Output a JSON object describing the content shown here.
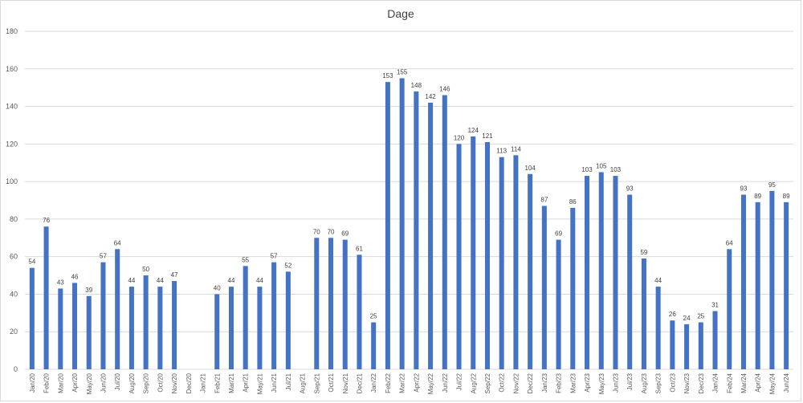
{
  "chart_data": {
    "type": "bar",
    "title": "Dage",
    "xlabel": "",
    "ylabel": "",
    "ylim": [
      0,
      180
    ],
    "yticks": [
      0,
      20,
      40,
      60,
      80,
      100,
      120,
      140,
      160,
      180
    ],
    "grid": true,
    "legend": "none",
    "bar_color": "#4472c4",
    "categories": [
      "Jan/20",
      "Feb/20",
      "Mar/20",
      "Apr/20",
      "May/20",
      "Jun/20",
      "Jul/20",
      "Aug/20",
      "Sep/20",
      "Oct/20",
      "Nov/20",
      "Dec/20",
      "Jan/21",
      "Feb/21",
      "Mar/21",
      "Apr/21",
      "May/21",
      "Jun/21",
      "Jul/21",
      "Aug/21",
      "Sep/21",
      "Oct/21",
      "Nov/21",
      "Dec/21",
      "Jan/22",
      "Feb/22",
      "Mar/22",
      "Apr/22",
      "May/22",
      "Jun/22",
      "Jul/22",
      "Aug/22",
      "Sep/22",
      "Oct/22",
      "Nov/22",
      "Dec/22",
      "Jan/23",
      "Feb/23",
      "Mar/23",
      "Apr/23",
      "May/23",
      "Jun/23",
      "Jul/23",
      "Aug/23",
      "Sep/23",
      "Oct/23",
      "Nov/23",
      "Dec/23",
      "Jan/24",
      "Feb/24",
      "Mar/24",
      "Apr/24",
      "May/24",
      "Jun/24"
    ],
    "values": [
      54,
      76,
      43,
      46,
      39,
      57,
      64,
      44,
      50,
      44,
      47,
      null,
      null,
      40,
      44,
      55,
      44,
      57,
      52,
      null,
      70,
      70,
      69,
      61,
      25,
      153,
      155,
      148,
      142,
      146,
      120,
      124,
      121,
      113,
      114,
      104,
      87,
      69,
      86,
      103,
      105,
      103,
      93,
      59,
      44,
      26,
      24,
      25,
      31,
      64,
      93,
      89,
      95,
      89
    ]
  }
}
